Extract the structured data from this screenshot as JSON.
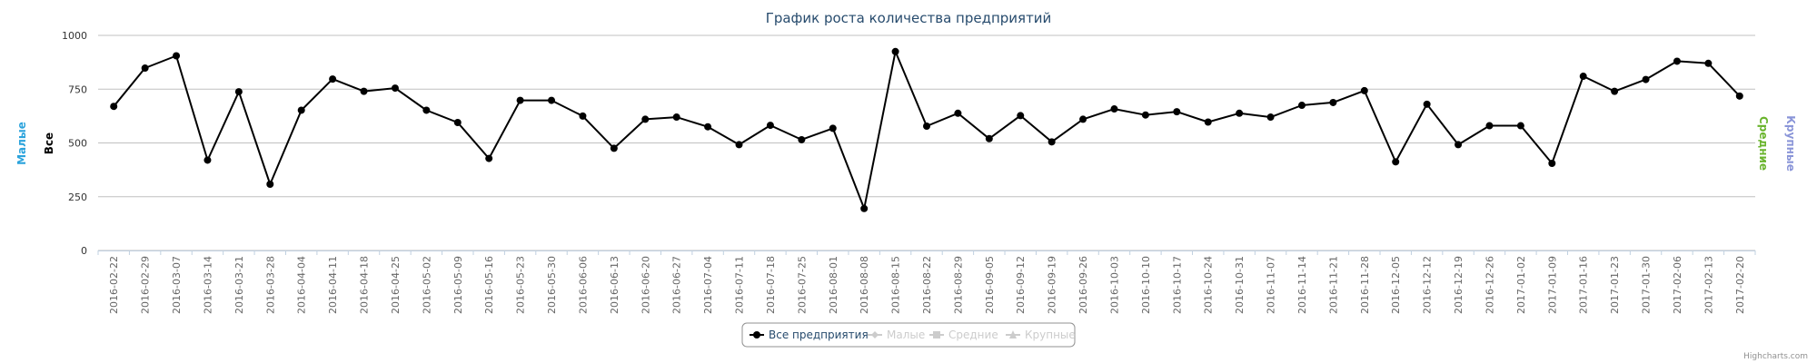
{
  "chart_data": {
    "type": "line",
    "title": "График роста количества предприятий",
    "ylim": [
      0,
      1000
    ],
    "yticks": [
      "0",
      "250",
      "500",
      "750",
      "1000"
    ],
    "grid": true,
    "legend_position": "bottom-center",
    "axis_titles": {
      "left_outer": {
        "text": "Малые",
        "color": "#2ba3dc"
      },
      "left_inner": {
        "text": "Все",
        "color": "#000000"
      },
      "right_inner": {
        "text": "Средние",
        "color": "#6ab42d"
      },
      "right_outer": {
        "text": "Крупные",
        "color": "#8a95d8"
      }
    },
    "categories": [
      "2016-02-22",
      "2016-02-29",
      "2016-03-07",
      "2016-03-14",
      "2016-03-21",
      "2016-03-28",
      "2016-04-04",
      "2016-04-11",
      "2016-04-18",
      "2016-04-25",
      "2016-05-02",
      "2016-05-09",
      "2016-05-16",
      "2016-05-23",
      "2016-05-30",
      "2016-06-06",
      "2016-06-13",
      "2016-06-20",
      "2016-06-27",
      "2016-07-04",
      "2016-07-11",
      "2016-07-18",
      "2016-07-25",
      "2016-08-01",
      "2016-08-08",
      "2016-08-15",
      "2016-08-22",
      "2016-08-29",
      "2016-09-05",
      "2016-09-12",
      "2016-09-19",
      "2016-09-26",
      "2016-10-03",
      "2016-10-10",
      "2016-10-17",
      "2016-10-24",
      "2016-10-31",
      "2016-11-07",
      "2016-11-14",
      "2016-11-21",
      "2016-11-28",
      "2016-12-05",
      "2016-12-12",
      "2016-12-19",
      "2016-12-26",
      "2017-01-02",
      "2017-01-09",
      "2017-01-16",
      "2017-01-23",
      "2017-01-30",
      "2017-02-06",
      "2017-02-13",
      "2017-02-20"
    ],
    "series": [
      {
        "name": "Все предприятия",
        "color": "#000000",
        "visible": true,
        "values": [
          670,
          848,
          905,
          420,
          738,
          308,
          652,
          797,
          740,
          755,
          652,
          595,
          428,
          698,
          698,
          625,
          475,
          610,
          620,
          575,
          492,
          582,
          515,
          568,
          195,
          925,
          578,
          638,
          520,
          627,
          505,
          610,
          658,
          630,
          645,
          597,
          638,
          620,
          675,
          688,
          743,
          412,
          680,
          492,
          580,
          580,
          405,
          810,
          740,
          795,
          880,
          870,
          718
        ]
      },
      {
        "name": "Малые",
        "color": "#cccccc",
        "visible": false,
        "marker": "diamond"
      },
      {
        "name": "Средние",
        "color": "#cccccc",
        "visible": false,
        "marker": "square"
      },
      {
        "name": "Крупные",
        "color": "#cccccc",
        "visible": false,
        "marker": "triangle"
      }
    ]
  },
  "credits": "Highcharts.com"
}
